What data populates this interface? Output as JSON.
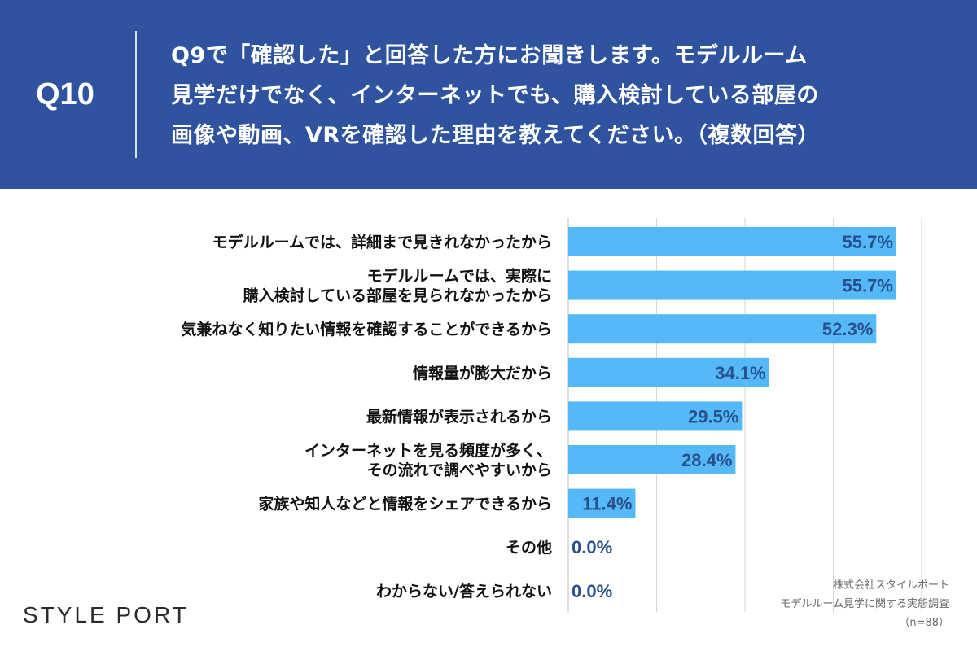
{
  "header": {
    "question_number": "Q10",
    "question_lines": [
      "Q9で「確認した」と回答した方にお聞きします。モデルルーム",
      "見学だけでなく、インターネットでも、購入検討している部屋の",
      "画像や動画、VRを確認した理由を教えてください。（複数回答）"
    ]
  },
  "colors": {
    "header_background": "#3053a0",
    "bar": "#56b9f7",
    "value_text": "#2a4f8d",
    "gridline": "#d6d6d6"
  },
  "chart_data": {
    "type": "bar",
    "orientation": "horizontal",
    "categories": [
      [
        "モデルルームでは、詳細まで見きれなかったから"
      ],
      [
        "モデルルームでは、実際に",
        "購入検討している部屋を見られなかったから"
      ],
      [
        "気兼ねなく知りたい情報を確認することができるから"
      ],
      [
        "情報量が膨大だから"
      ],
      [
        "最新情報が表示されるから"
      ],
      [
        "インターネットを見る頻度が多く、",
        "その流れで調べやすいから"
      ],
      [
        "家族や知人などと情報をシェアできるから"
      ],
      [
        "その他"
      ],
      [
        "わからない/答えられない"
      ]
    ],
    "values": [
      55.7,
      55.7,
      52.3,
      34.1,
      29.5,
      28.4,
      11.4,
      0.0,
      0.0
    ],
    "value_labels": [
      "55.7%",
      "55.7%",
      "52.3%",
      "34.1%",
      "29.5%",
      "28.4%",
      "11.4%",
      "0.0%",
      "0.0%"
    ],
    "xlim": [
      0,
      60
    ],
    "grid_step": 15,
    "grid": true,
    "legend": "none",
    "xlabel": "",
    "ylabel": ""
  },
  "footer": {
    "brand": "STYLE PORT",
    "source_lines": [
      "株式会社スタイルポート",
      "モデルルーム見学に関する実態調査",
      "（n=88）"
    ]
  }
}
